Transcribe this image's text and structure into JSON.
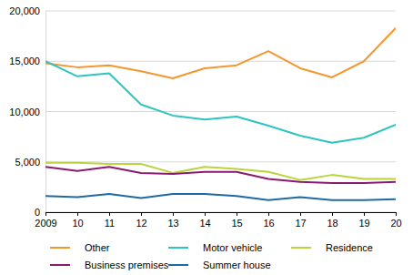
{
  "chart_data": {
    "type": "line",
    "x": [
      2009,
      2010,
      2011,
      2012,
      2013,
      2014,
      2015,
      2016,
      2017,
      2018,
      2019,
      2020
    ],
    "xlim": [
      2009,
      2020
    ],
    "xticks": [
      2009,
      {
        "value": 2010,
        "label": "10"
      },
      {
        "value": 2011,
        "label": "11"
      },
      {
        "value": 2012,
        "label": "12"
      },
      {
        "value": 2013,
        "label": "13"
      },
      {
        "value": 2014,
        "label": "14"
      },
      {
        "value": 2015,
        "label": "15"
      },
      {
        "value": 2016,
        "label": "16"
      },
      {
        "value": 2017,
        "label": "17"
      },
      {
        "value": 2018,
        "label": "18"
      },
      {
        "value": 2019,
        "label": "19"
      },
      {
        "value": 2020,
        "label": "20"
      }
    ],
    "ylim": [
      0,
      20000
    ],
    "yticks": [
      0,
      {
        "value": 5000,
        "label": "5,000"
      },
      {
        "value": 10000,
        "label": "10,000"
      },
      {
        "value": 15000,
        "label": "15,000"
      },
      {
        "value": 20000,
        "label": "20,000"
      }
    ],
    "grid": true,
    "legend": "bottom",
    "series": [
      {
        "name": "Other",
        "color": "#f5962e",
        "values": [
          14800,
          14400,
          14600,
          14000,
          13300,
          14300,
          14600,
          16000,
          14300,
          13400,
          15000,
          18300
        ]
      },
      {
        "name": "Motor vehicle",
        "color": "#2ec4c0",
        "values": [
          15000,
          13500,
          13800,
          10700,
          9600,
          9200,
          9500,
          8600,
          7600,
          6900,
          7400,
          8700
        ]
      },
      {
        "name": "Residence",
        "color": "#b9d43c",
        "values": [
          4900,
          4900,
          4800,
          4800,
          3900,
          4500,
          4300,
          4000,
          3200,
          3700,
          3300,
          3300
        ]
      },
      {
        "name": "Business premises",
        "color": "#8c1a6e",
        "values": [
          4500,
          4100,
          4500,
          3900,
          3800,
          4000,
          4000,
          3300,
          3000,
          2900,
          2900,
          3000
        ]
      },
      {
        "name": "Summer house",
        "color": "#1f6aa5",
        "values": [
          1600,
          1500,
          1800,
          1400,
          1800,
          1800,
          1600,
          1200,
          1500,
          1200,
          1200,
          1300
        ]
      }
    ]
  }
}
